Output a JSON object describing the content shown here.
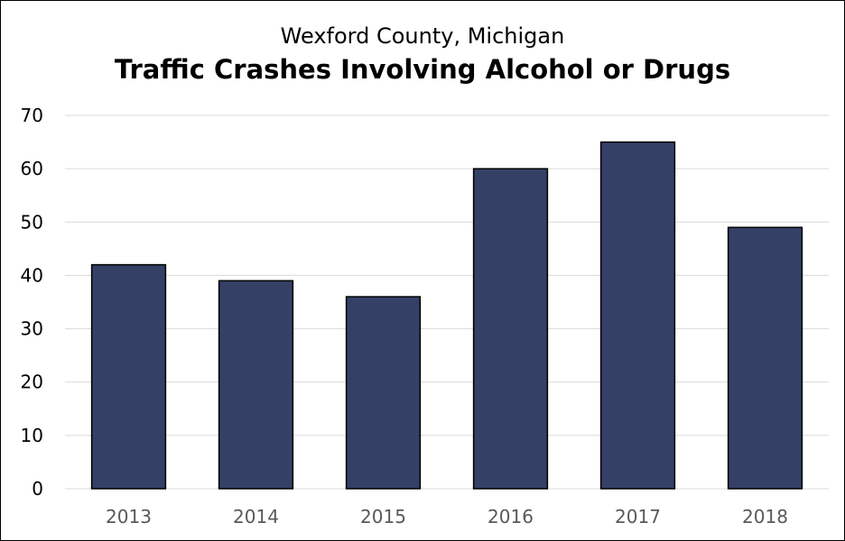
{
  "chart_data": {
    "type": "bar",
    "subtitle": "Wexford County, Michigan",
    "title": "Traffic Crashes Involving Alcohol or Drugs",
    "categories": [
      "2013",
      "2014",
      "2015",
      "2016",
      "2017",
      "2018"
    ],
    "values": [
      42,
      39,
      36,
      60,
      65,
      49
    ],
    "ylim": [
      0,
      70
    ],
    "yticks": [
      "0",
      "10",
      "20",
      "30",
      "40",
      "50",
      "60",
      "70"
    ],
    "xlabel": "",
    "ylabel": "",
    "grid": true,
    "legend": "none",
    "colors": {
      "bar_fill": "#344066",
      "bar_stroke": "#000000",
      "grid": "#d9d9d9",
      "y_tick_text": "#000000",
      "x_tick_text": "#595959"
    }
  }
}
